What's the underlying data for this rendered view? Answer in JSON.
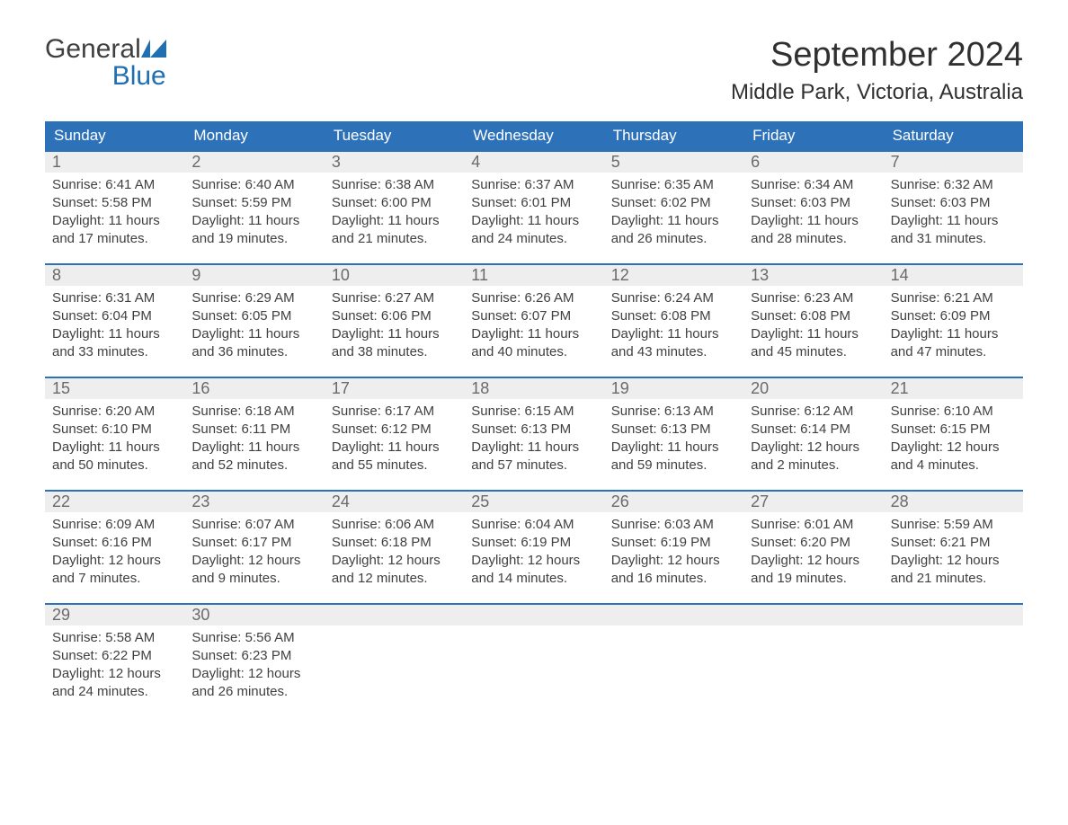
{
  "brand": {
    "name_a": "General",
    "name_b": "Blue"
  },
  "title": "September 2024",
  "location": "Middle Park, Victoria, Australia",
  "colors": {
    "header_bg": "#2d72b8",
    "header_text": "#ffffff",
    "daynum_bg": "#eeeeee",
    "daynum_text": "#6a6a6a",
    "body_text": "#404040",
    "cell_border": "#2d72b8",
    "brand_blue": "#1f6fb2",
    "page_bg": "#ffffff"
  },
  "layout": {
    "columns": 7,
    "rows": 5,
    "fontsize_title": 38,
    "fontsize_location": 24,
    "fontsize_dayheader": 17,
    "fontsize_daynum": 18,
    "fontsize_body": 15
  },
  "day_headers": [
    "Sunday",
    "Monday",
    "Tuesday",
    "Wednesday",
    "Thursday",
    "Friday",
    "Saturday"
  ],
  "days": [
    {
      "n": "1",
      "sunrise": "Sunrise: 6:41 AM",
      "sunset": "Sunset: 5:58 PM",
      "dl1": "Daylight: 11 hours",
      "dl2": "and 17 minutes."
    },
    {
      "n": "2",
      "sunrise": "Sunrise: 6:40 AM",
      "sunset": "Sunset: 5:59 PM",
      "dl1": "Daylight: 11 hours",
      "dl2": "and 19 minutes."
    },
    {
      "n": "3",
      "sunrise": "Sunrise: 6:38 AM",
      "sunset": "Sunset: 6:00 PM",
      "dl1": "Daylight: 11 hours",
      "dl2": "and 21 minutes."
    },
    {
      "n": "4",
      "sunrise": "Sunrise: 6:37 AM",
      "sunset": "Sunset: 6:01 PM",
      "dl1": "Daylight: 11 hours",
      "dl2": "and 24 minutes."
    },
    {
      "n": "5",
      "sunrise": "Sunrise: 6:35 AM",
      "sunset": "Sunset: 6:02 PM",
      "dl1": "Daylight: 11 hours",
      "dl2": "and 26 minutes."
    },
    {
      "n": "6",
      "sunrise": "Sunrise: 6:34 AM",
      "sunset": "Sunset: 6:03 PM",
      "dl1": "Daylight: 11 hours",
      "dl2": "and 28 minutes."
    },
    {
      "n": "7",
      "sunrise": "Sunrise: 6:32 AM",
      "sunset": "Sunset: 6:03 PM",
      "dl1": "Daylight: 11 hours",
      "dl2": "and 31 minutes."
    },
    {
      "n": "8",
      "sunrise": "Sunrise: 6:31 AM",
      "sunset": "Sunset: 6:04 PM",
      "dl1": "Daylight: 11 hours",
      "dl2": "and 33 minutes."
    },
    {
      "n": "9",
      "sunrise": "Sunrise: 6:29 AM",
      "sunset": "Sunset: 6:05 PM",
      "dl1": "Daylight: 11 hours",
      "dl2": "and 36 minutes."
    },
    {
      "n": "10",
      "sunrise": "Sunrise: 6:27 AM",
      "sunset": "Sunset: 6:06 PM",
      "dl1": "Daylight: 11 hours",
      "dl2": "and 38 minutes."
    },
    {
      "n": "11",
      "sunrise": "Sunrise: 6:26 AM",
      "sunset": "Sunset: 6:07 PM",
      "dl1": "Daylight: 11 hours",
      "dl2": "and 40 minutes."
    },
    {
      "n": "12",
      "sunrise": "Sunrise: 6:24 AM",
      "sunset": "Sunset: 6:08 PM",
      "dl1": "Daylight: 11 hours",
      "dl2": "and 43 minutes."
    },
    {
      "n": "13",
      "sunrise": "Sunrise: 6:23 AM",
      "sunset": "Sunset: 6:08 PM",
      "dl1": "Daylight: 11 hours",
      "dl2": "and 45 minutes."
    },
    {
      "n": "14",
      "sunrise": "Sunrise: 6:21 AM",
      "sunset": "Sunset: 6:09 PM",
      "dl1": "Daylight: 11 hours",
      "dl2": "and 47 minutes."
    },
    {
      "n": "15",
      "sunrise": "Sunrise: 6:20 AM",
      "sunset": "Sunset: 6:10 PM",
      "dl1": "Daylight: 11 hours",
      "dl2": "and 50 minutes."
    },
    {
      "n": "16",
      "sunrise": "Sunrise: 6:18 AM",
      "sunset": "Sunset: 6:11 PM",
      "dl1": "Daylight: 11 hours",
      "dl2": "and 52 minutes."
    },
    {
      "n": "17",
      "sunrise": "Sunrise: 6:17 AM",
      "sunset": "Sunset: 6:12 PM",
      "dl1": "Daylight: 11 hours",
      "dl2": "and 55 minutes."
    },
    {
      "n": "18",
      "sunrise": "Sunrise: 6:15 AM",
      "sunset": "Sunset: 6:13 PM",
      "dl1": "Daylight: 11 hours",
      "dl2": "and 57 minutes."
    },
    {
      "n": "19",
      "sunrise": "Sunrise: 6:13 AM",
      "sunset": "Sunset: 6:13 PM",
      "dl1": "Daylight: 11 hours",
      "dl2": "and 59 minutes."
    },
    {
      "n": "20",
      "sunrise": "Sunrise: 6:12 AM",
      "sunset": "Sunset: 6:14 PM",
      "dl1": "Daylight: 12 hours",
      "dl2": "and 2 minutes."
    },
    {
      "n": "21",
      "sunrise": "Sunrise: 6:10 AM",
      "sunset": "Sunset: 6:15 PM",
      "dl1": "Daylight: 12 hours",
      "dl2": "and 4 minutes."
    },
    {
      "n": "22",
      "sunrise": "Sunrise: 6:09 AM",
      "sunset": "Sunset: 6:16 PM",
      "dl1": "Daylight: 12 hours",
      "dl2": "and 7 minutes."
    },
    {
      "n": "23",
      "sunrise": "Sunrise: 6:07 AM",
      "sunset": "Sunset: 6:17 PM",
      "dl1": "Daylight: 12 hours",
      "dl2": "and 9 minutes."
    },
    {
      "n": "24",
      "sunrise": "Sunrise: 6:06 AM",
      "sunset": "Sunset: 6:18 PM",
      "dl1": "Daylight: 12 hours",
      "dl2": "and 12 minutes."
    },
    {
      "n": "25",
      "sunrise": "Sunrise: 6:04 AM",
      "sunset": "Sunset: 6:19 PM",
      "dl1": "Daylight: 12 hours",
      "dl2": "and 14 minutes."
    },
    {
      "n": "26",
      "sunrise": "Sunrise: 6:03 AM",
      "sunset": "Sunset: 6:19 PM",
      "dl1": "Daylight: 12 hours",
      "dl2": "and 16 minutes."
    },
    {
      "n": "27",
      "sunrise": "Sunrise: 6:01 AM",
      "sunset": "Sunset: 6:20 PM",
      "dl1": "Daylight: 12 hours",
      "dl2": "and 19 minutes."
    },
    {
      "n": "28",
      "sunrise": "Sunrise: 5:59 AM",
      "sunset": "Sunset: 6:21 PM",
      "dl1": "Daylight: 12 hours",
      "dl2": "and 21 minutes."
    },
    {
      "n": "29",
      "sunrise": "Sunrise: 5:58 AM",
      "sunset": "Sunset: 6:22 PM",
      "dl1": "Daylight: 12 hours",
      "dl2": "and 24 minutes."
    },
    {
      "n": "30",
      "sunrise": "Sunrise: 5:56 AM",
      "sunset": "Sunset: 6:23 PM",
      "dl1": "Daylight: 12 hours",
      "dl2": "and 26 minutes."
    }
  ],
  "trailing_empty": 5
}
